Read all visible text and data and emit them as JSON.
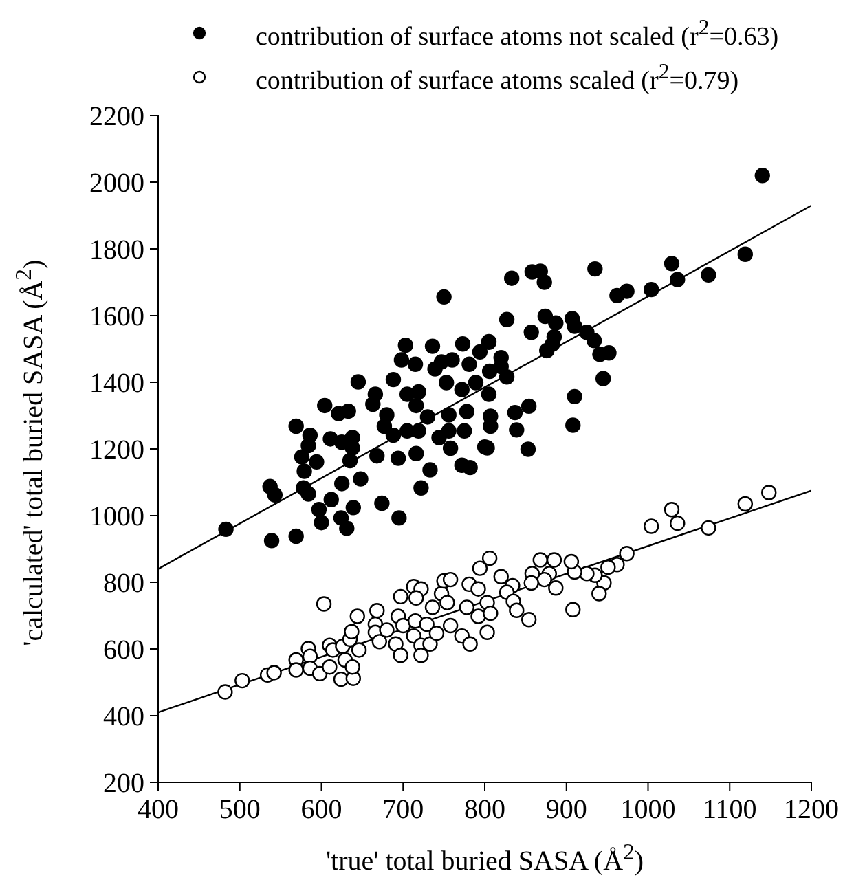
{
  "chart_data": {
    "type": "scatter",
    "xlabel": "'true' total buried SASA (Å$^{2}$)",
    "ylabel": "'calculated' total buried SASA (Å$^{2}$)",
    "xlim": [
      400,
      1200
    ],
    "ylim": [
      200,
      2200
    ],
    "xticks": [
      400,
      500,
      600,
      700,
      800,
      900,
      1000,
      1100,
      1200
    ],
    "yticks": [
      200,
      400,
      600,
      800,
      1000,
      1200,
      1400,
      1600,
      1800,
      2000,
      2200
    ],
    "legend": "top",
    "marker": "circle",
    "series": [
      {
        "name": "contribution of surface atoms not scaled (r$^{2}$=0.63)",
        "color": "#000000",
        "x": [
          483,
          539,
          569,
          537,
          543,
          578,
          584,
          597,
          600,
          612,
          624,
          631,
          639,
          625,
          635,
          648,
          674,
          695,
          722,
          576,
          579,
          594,
          569,
          586,
          584,
          611,
          625,
          638,
          638,
          604,
          621,
          633,
          645,
          666,
          663,
          680,
          677,
          688,
          668,
          694,
          688,
          698,
          703,
          715,
          705,
          719,
          716,
          705,
          719,
          716,
          733,
          730,
          750,
          736,
          739,
          753,
          747,
          760,
          773,
          756,
          756,
          744,
          758,
          772,
          782,
          775,
          778,
          772,
          781,
          794,
          805,
          800,
          789,
          1119,
          1074,
          1029,
          1036,
          1004,
          974,
          962,
          935,
          833,
          858,
          868,
          873,
          827,
          874,
          857,
          887,
          907,
          910,
          885,
          883,
          876,
          925,
          934,
          941,
          952,
          945,
          910,
          908,
          854,
          837,
          839,
          853,
          803,
          807,
          807,
          805,
          806,
          820,
          820,
          827,
          805,
          1140
        ],
        "values": [
          959,
          925,
          938,
          1087,
          1062,
          1083,
          1065,
          1018,
          979,
          1048,
          993,
          962,
          1024,
          1096,
          1165,
          1110,
          1037,
          993,
          1083,
          1176,
          1133,
          1161,
          1268,
          1241,
          1210,
          1230,
          1220,
          1234,
          1203,
          1330,
          1306,
          1313,
          1401,
          1364,
          1334,
          1302,
          1268,
          1241,
          1179,
          1172,
          1408,
          1467,
          1511,
          1454,
          1364,
          1371,
          1330,
          1254,
          1254,
          1186,
          1137,
          1296,
          1656,
          1508,
          1440,
          1399,
          1461,
          1467,
          1515,
          1302,
          1254,
          1234,
          1202,
          1151,
          1144,
          1254,
          1312,
          1378,
          1454,
          1491,
          1522,
          1206,
          1399,
          1784,
          1722,
          1756,
          1708,
          1678,
          1673,
          1660,
          1740,
          1712,
          1731,
          1733,
          1700,
          1588,
          1598,
          1550,
          1578,
          1591,
          1568,
          1536,
          1515,
          1495,
          1550,
          1525,
          1484,
          1488,
          1411,
          1357,
          1271,
          1328,
          1309,
          1257,
          1199,
          1203,
          1268,
          1298,
          1364,
          1433,
          1474,
          1447,
          1416,
          1520,
          2020
        ]
      },
      {
        "name": "contribution of surface atoms scaled (r$^{2}$=0.79)",
        "color": "#ffffff",
        "x": [
          603,
          482,
          503,
          534,
          542,
          569,
          569,
          584,
          586,
          586,
          598,
          610,
          614,
          610,
          624,
          639,
          626,
          635,
          637,
          629,
          638,
          646,
          644,
          668,
          666,
          666,
          671,
          680,
          691,
          697,
          697,
          694,
          700,
          713,
          722,
          716,
          715,
          713,
          722,
          722,
          733,
          729,
          741,
          736,
          747,
          750,
          758,
          758,
          754,
          772,
          782,
          778,
          781,
          792,
          792,
          794,
          806,
          803,
          803,
          1148,
          1119,
          1074,
          1029,
          1036,
          1004,
          974,
          962,
          951,
          946,
          940,
          935,
          925,
          910,
          906,
          908,
          887,
          885,
          879,
          873,
          868,
          858,
          857,
          854,
          834,
          827,
          835,
          839,
          820,
          807
        ],
        "values": [
          735,
          471,
          505,
          522,
          529,
          567,
          537,
          601,
          578,
          542,
          526,
          611,
          597,
          546,
          509,
          512,
          608,
          629,
          652,
          567,
          546,
          597,
          698,
          715,
          674,
          650,
          622,
          657,
          615,
          581,
          757,
          698,
          670,
          787,
          780,
          753,
          684,
          639,
          611,
          581,
          615,
          674,
          647,
          725,
          766,
          804,
          808,
          670,
          739,
          639,
          615,
          725,
          794,
          780,
          698,
          842,
          872,
          739,
          650,
          1069,
          1035,
          963,
          1018,
          977,
          968,
          886,
          853,
          845,
          798,
          766,
          821,
          826,
          831,
          862,
          718,
          783,
          867,
          826,
          808,
          867,
          826,
          798,
          688,
          790,
          770,
          743,
          716,
          817,
          707
        ]
      },
      {
        "type": "line",
        "marker": "none",
        "color": "#000000",
        "x": [
          400,
          1200
        ],
        "values": [
          840,
          1930
        ]
      },
      {
        "type": "line",
        "marker": "none",
        "color": "#000000",
        "x": [
          400,
          1200
        ],
        "values": [
          410,
          1075
        ]
      }
    ]
  }
}
